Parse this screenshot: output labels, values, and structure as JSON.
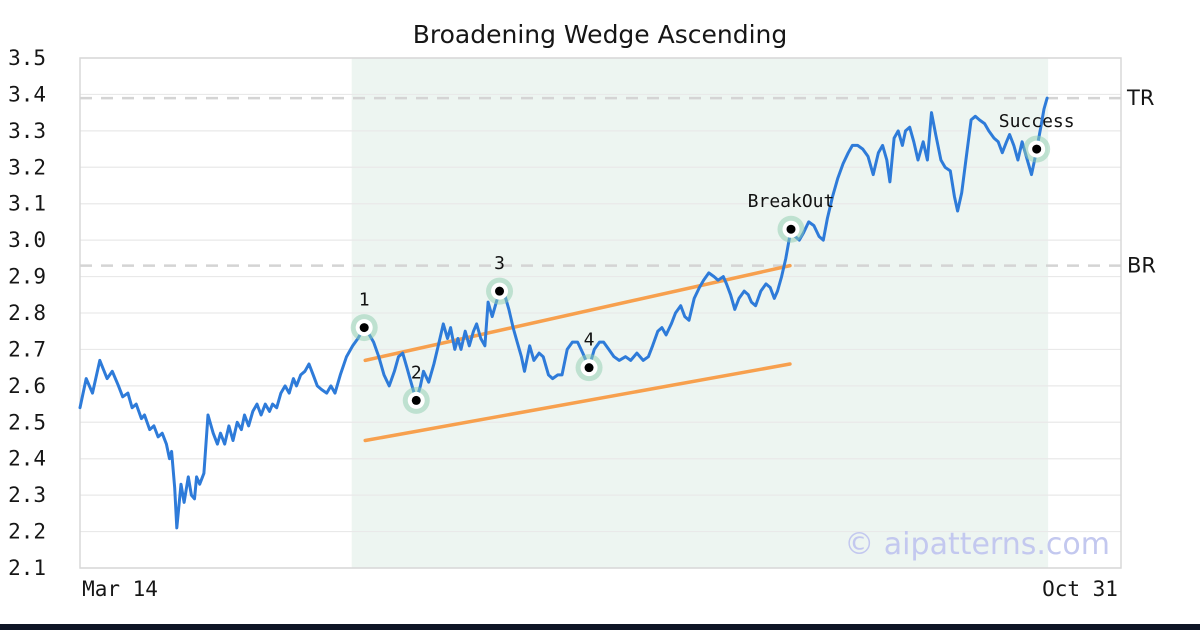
{
  "watermark": "© aipatterns.com",
  "colors": {
    "price_line": "#2E7BD9",
    "trend": "#F7A04E",
    "pattern_region": "#EDF5F1",
    "grid": "#E9E9E9",
    "border": "#D8D8D8",
    "level_dash": "#D4D4D4",
    "marker_halo": "#8FCEB0",
    "text": "#161616",
    "watermark": "#C3C8EF",
    "bottom_bar": "#0E1526"
  },
  "chart_data": {
    "type": "line",
    "title": "Broadening Wedge Ascending",
    "x_axis": {
      "start_label": "Mar 14",
      "end_label": "Oct 31",
      "unit": "fraction_of_date_range"
    },
    "y_axis": {
      "min": 2.1,
      "max": 3.5,
      "tick_step": 0.1,
      "ticks": [
        2.1,
        2.2,
        2.3,
        2.4,
        2.5,
        2.6,
        2.7,
        2.8,
        2.9,
        3.0,
        3.1,
        3.2,
        3.3,
        3.4,
        3.5
      ]
    },
    "grid": true,
    "levels": [
      {
        "label": "TR",
        "price": 3.39
      },
      {
        "label": "BR",
        "price": 2.93
      }
    ],
    "pattern_region": {
      "x_from": 0.261,
      "x_to": 0.93
    },
    "trendlines": [
      {
        "name": "upper",
        "from": [
          0.274,
          2.67
        ],
        "to": [
          0.682,
          2.93
        ]
      },
      {
        "name": "lower",
        "from": [
          0.274,
          2.45
        ],
        "to": [
          0.682,
          2.66
        ]
      }
    ],
    "annotations": [
      {
        "id": "1",
        "label": "1",
        "x": 0.273,
        "price": 2.76
      },
      {
        "id": "2",
        "label": "2",
        "x": 0.323,
        "price": 2.56
      },
      {
        "id": "3",
        "label": "3",
        "x": 0.403,
        "price": 2.86
      },
      {
        "id": "4",
        "label": "4",
        "x": 0.489,
        "price": 2.65
      },
      {
        "id": "breakout",
        "label": "BreakOut",
        "x": 0.683,
        "price": 3.03
      },
      {
        "id": "success",
        "label": "Success",
        "x": 0.919,
        "price": 3.25
      }
    ],
    "series": [
      {
        "name": "price",
        "points": [
          [
            0.0,
            2.54
          ],
          [
            0.006,
            2.62
          ],
          [
            0.012,
            2.58
          ],
          [
            0.019,
            2.67
          ],
          [
            0.026,
            2.62
          ],
          [
            0.031,
            2.64
          ],
          [
            0.037,
            2.6
          ],
          [
            0.041,
            2.57
          ],
          [
            0.046,
            2.58
          ],
          [
            0.05,
            2.54
          ],
          [
            0.054,
            2.55
          ],
          [
            0.059,
            2.51
          ],
          [
            0.062,
            2.52
          ],
          [
            0.067,
            2.48
          ],
          [
            0.071,
            2.49
          ],
          [
            0.075,
            2.46
          ],
          [
            0.079,
            2.47
          ],
          [
            0.083,
            2.44
          ],
          [
            0.086,
            2.4
          ],
          [
            0.088,
            2.42
          ],
          [
            0.091,
            2.32
          ],
          [
            0.093,
            2.21
          ],
          [
            0.097,
            2.33
          ],
          [
            0.1,
            2.28
          ],
          [
            0.104,
            2.35
          ],
          [
            0.107,
            2.3
          ],
          [
            0.11,
            2.29
          ],
          [
            0.112,
            2.35
          ],
          [
            0.115,
            2.33
          ],
          [
            0.119,
            2.36
          ],
          [
            0.123,
            2.52
          ],
          [
            0.128,
            2.47
          ],
          [
            0.132,
            2.44
          ],
          [
            0.135,
            2.47
          ],
          [
            0.139,
            2.44
          ],
          [
            0.143,
            2.49
          ],
          [
            0.147,
            2.45
          ],
          [
            0.151,
            2.5
          ],
          [
            0.155,
            2.48
          ],
          [
            0.158,
            2.52
          ],
          [
            0.162,
            2.49
          ],
          [
            0.166,
            2.53
          ],
          [
            0.17,
            2.55
          ],
          [
            0.174,
            2.52
          ],
          [
            0.178,
            2.55
          ],
          [
            0.182,
            2.53
          ],
          [
            0.185,
            2.55
          ],
          [
            0.189,
            2.54
          ],
          [
            0.193,
            2.58
          ],
          [
            0.197,
            2.6
          ],
          [
            0.201,
            2.58
          ],
          [
            0.205,
            2.62
          ],
          [
            0.208,
            2.6
          ],
          [
            0.212,
            2.63
          ],
          [
            0.216,
            2.64
          ],
          [
            0.22,
            2.66
          ],
          [
            0.224,
            2.63
          ],
          [
            0.228,
            2.6
          ],
          [
            0.232,
            2.59
          ],
          [
            0.237,
            2.58
          ],
          [
            0.241,
            2.6
          ],
          [
            0.245,
            2.58
          ],
          [
            0.25,
            2.63
          ],
          [
            0.256,
            2.68
          ],
          [
            0.262,
            2.71
          ],
          [
            0.267,
            2.73
          ],
          [
            0.273,
            2.76
          ],
          [
            0.278,
            2.74
          ],
          [
            0.282,
            2.72
          ],
          [
            0.287,
            2.68
          ],
          [
            0.292,
            2.63
          ],
          [
            0.297,
            2.6
          ],
          [
            0.302,
            2.64
          ],
          [
            0.306,
            2.68
          ],
          [
            0.31,
            2.69
          ],
          [
            0.314,
            2.65
          ],
          [
            0.318,
            2.61
          ],
          [
            0.323,
            2.56
          ],
          [
            0.327,
            2.6
          ],
          [
            0.33,
            2.64
          ],
          [
            0.335,
            2.61
          ],
          [
            0.34,
            2.66
          ],
          [
            0.345,
            2.72
          ],
          [
            0.349,
            2.77
          ],
          [
            0.353,
            2.73
          ],
          [
            0.356,
            2.76
          ],
          [
            0.36,
            2.7
          ],
          [
            0.363,
            2.73
          ],
          [
            0.366,
            2.7
          ],
          [
            0.37,
            2.75
          ],
          [
            0.374,
            2.71
          ],
          [
            0.378,
            2.75
          ],
          [
            0.381,
            2.77
          ],
          [
            0.385,
            2.73
          ],
          [
            0.389,
            2.71
          ],
          [
            0.392,
            2.83
          ],
          [
            0.396,
            2.79
          ],
          [
            0.403,
            2.86
          ],
          [
            0.408,
            2.85
          ],
          [
            0.412,
            2.81
          ],
          [
            0.416,
            2.76
          ],
          [
            0.42,
            2.72
          ],
          [
            0.424,
            2.68
          ],
          [
            0.427,
            2.64
          ],
          [
            0.432,
            2.71
          ],
          [
            0.436,
            2.67
          ],
          [
            0.441,
            2.69
          ],
          [
            0.445,
            2.68
          ],
          [
            0.45,
            2.63
          ],
          [
            0.454,
            2.62
          ],
          [
            0.459,
            2.63
          ],
          [
            0.463,
            2.63
          ],
          [
            0.468,
            2.7
          ],
          [
            0.473,
            2.72
          ],
          [
            0.478,
            2.72
          ],
          [
            0.483,
            2.69
          ],
          [
            0.489,
            2.65
          ],
          [
            0.494,
            2.7
          ],
          [
            0.499,
            2.72
          ],
          [
            0.503,
            2.72
          ],
          [
            0.508,
            2.7
          ],
          [
            0.513,
            2.68
          ],
          [
            0.518,
            2.67
          ],
          [
            0.524,
            2.68
          ],
          [
            0.529,
            2.67
          ],
          [
            0.535,
            2.69
          ],
          [
            0.541,
            2.67
          ],
          [
            0.546,
            2.68
          ],
          [
            0.55,
            2.71
          ],
          [
            0.555,
            2.75
          ],
          [
            0.559,
            2.76
          ],
          [
            0.563,
            2.74
          ],
          [
            0.568,
            2.77
          ],
          [
            0.572,
            2.8
          ],
          [
            0.577,
            2.82
          ],
          [
            0.581,
            2.79
          ],
          [
            0.585,
            2.78
          ],
          [
            0.59,
            2.84
          ],
          [
            0.595,
            2.87
          ],
          [
            0.599,
            2.89
          ],
          [
            0.604,
            2.91
          ],
          [
            0.609,
            2.9
          ],
          [
            0.613,
            2.89
          ],
          [
            0.618,
            2.9
          ],
          [
            0.621,
            2.88
          ],
          [
            0.625,
            2.85
          ],
          [
            0.629,
            2.81
          ],
          [
            0.633,
            2.84
          ],
          [
            0.638,
            2.86
          ],
          [
            0.642,
            2.85
          ],
          [
            0.645,
            2.83
          ],
          [
            0.649,
            2.82
          ],
          [
            0.654,
            2.86
          ],
          [
            0.659,
            2.88
          ],
          [
            0.663,
            2.87
          ],
          [
            0.667,
            2.84
          ],
          [
            0.67,
            2.86
          ],
          [
            0.674,
            2.9
          ],
          [
            0.678,
            2.95
          ],
          [
            0.683,
            3.03
          ],
          [
            0.687,
            3.01
          ],
          [
            0.691,
            3.0
          ],
          [
            0.695,
            3.02
          ],
          [
            0.7,
            3.05
          ],
          [
            0.705,
            3.04
          ],
          [
            0.71,
            3.01
          ],
          [
            0.714,
            3.0
          ],
          [
            0.718,
            3.06
          ],
          [
            0.723,
            3.12
          ],
          [
            0.728,
            3.17
          ],
          [
            0.733,
            3.21
          ],
          [
            0.738,
            3.24
          ],
          [
            0.742,
            3.26
          ],
          [
            0.747,
            3.26
          ],
          [
            0.752,
            3.25
          ],
          [
            0.757,
            3.23
          ],
          [
            0.762,
            3.18
          ],
          [
            0.767,
            3.24
          ],
          [
            0.771,
            3.26
          ],
          [
            0.775,
            3.22
          ],
          [
            0.778,
            3.16
          ],
          [
            0.782,
            3.28
          ],
          [
            0.786,
            3.3
          ],
          [
            0.79,
            3.26
          ],
          [
            0.793,
            3.3
          ],
          [
            0.797,
            3.31
          ],
          [
            0.801,
            3.27
          ],
          [
            0.805,
            3.22
          ],
          [
            0.81,
            3.27
          ],
          [
            0.814,
            3.22
          ],
          [
            0.818,
            3.35
          ],
          [
            0.822,
            3.29
          ],
          [
            0.827,
            3.22
          ],
          [
            0.831,
            3.2
          ],
          [
            0.836,
            3.19
          ],
          [
            0.84,
            3.12
          ],
          [
            0.843,
            3.08
          ],
          [
            0.847,
            3.13
          ],
          [
            0.851,
            3.22
          ],
          [
            0.856,
            3.33
          ],
          [
            0.86,
            3.34
          ],
          [
            0.864,
            3.33
          ],
          [
            0.869,
            3.32
          ],
          [
            0.873,
            3.3
          ],
          [
            0.878,
            3.28
          ],
          [
            0.882,
            3.27
          ],
          [
            0.886,
            3.24
          ],
          [
            0.89,
            3.27
          ],
          [
            0.893,
            3.29
          ],
          [
            0.897,
            3.26
          ],
          [
            0.901,
            3.22
          ],
          [
            0.905,
            3.27
          ],
          [
            0.909,
            3.23
          ],
          [
            0.912,
            3.2
          ],
          [
            0.914,
            3.18
          ],
          [
            0.917,
            3.22
          ],
          [
            0.919,
            3.25
          ],
          [
            0.923,
            3.31
          ],
          [
            0.926,
            3.36
          ],
          [
            0.929,
            3.39
          ]
        ]
      }
    ]
  }
}
